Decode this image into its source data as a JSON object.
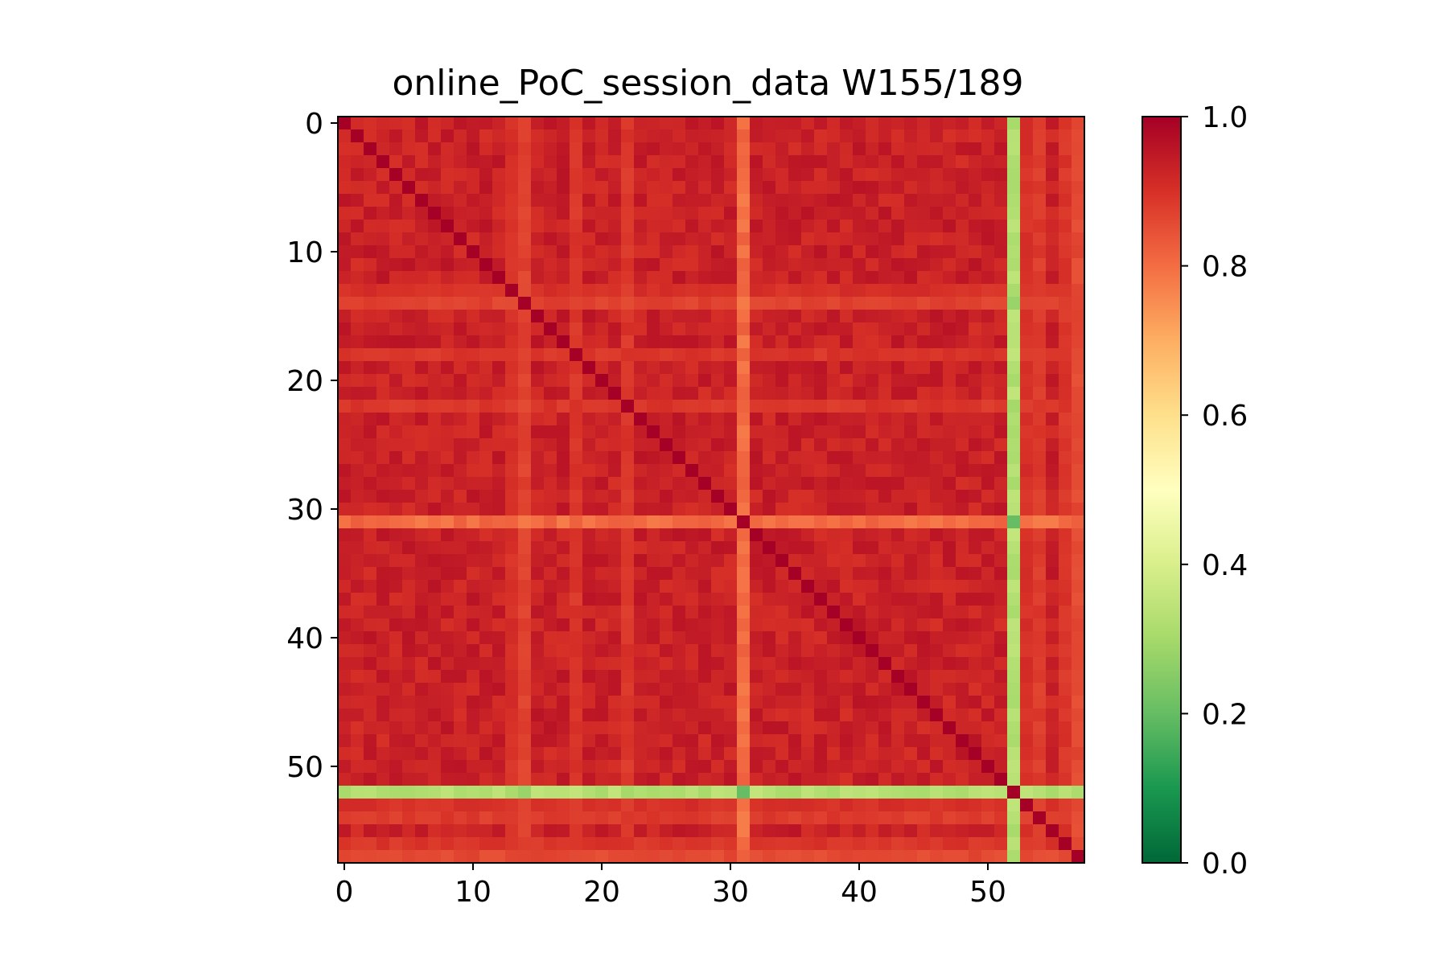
{
  "chart_data": {
    "type": "heatmap",
    "title": "online_PoC_session_data W155/189",
    "xlabel": "",
    "ylabel": "",
    "size": 58,
    "colormap": "RdYlGn",
    "vmin": 0.0,
    "vmax": 1.0,
    "xlim": [
      -0.5,
      57.5
    ],
    "ylim": [
      57.5,
      -0.5
    ],
    "x_ticks": [
      0,
      10,
      20,
      30,
      40,
      50
    ],
    "x_tick_labels": [
      "0",
      "10",
      "20",
      "30",
      "40",
      "50"
    ],
    "y_ticks": [
      0,
      10,
      20,
      30,
      40,
      50
    ],
    "y_tick_labels": [
      "0",
      "10",
      "20",
      "30",
      "40",
      "50"
    ],
    "colorbar_ticks": [
      0.0,
      0.2,
      0.4,
      0.6,
      0.8,
      1.0
    ],
    "colorbar_tick_labels": [
      "0.0",
      "0.2",
      "0.4",
      "0.6",
      "0.8",
      "1.0"
    ],
    "grid": false,
    "base_value": 0.93,
    "diagonal_value": 1.0,
    "row_col_effects": [
      {
        "index": 31,
        "value": 0.8,
        "label": "row/col 31 lower similarity"
      },
      {
        "index": 52,
        "value": 0.33,
        "label": "row/col 52 low similarity"
      }
    ],
    "weaker_indices": [
      {
        "index": 14,
        "value": 0.87
      },
      {
        "index": 18,
        "value": 0.89
      },
      {
        "index": 22,
        "value": 0.89
      },
      {
        "index": 13,
        "value": 0.9
      },
      {
        "index": 53,
        "value": 0.9
      },
      {
        "index": 54,
        "value": 0.88
      },
      {
        "index": 56,
        "value": 0.89
      },
      {
        "index": 57,
        "value": 0.86
      }
    ],
    "pair_values": [
      {
        "i": 31,
        "j": 52,
        "value": 0.2
      },
      {
        "i": 14,
        "j": 52,
        "value": 0.28
      },
      {
        "i": 22,
        "j": 52,
        "value": 0.3
      }
    ]
  }
}
